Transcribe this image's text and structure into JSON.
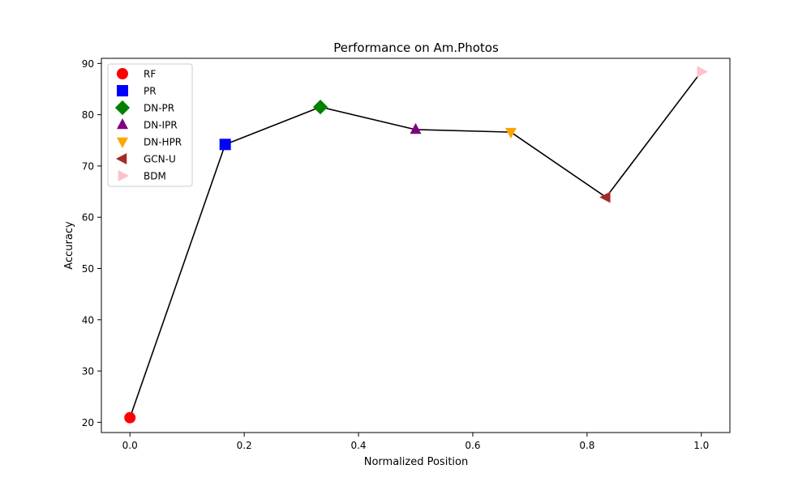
{
  "chart_data": {
    "type": "scatter",
    "title": "Performance on Am.Photos",
    "xlabel": "Normalized Position",
    "ylabel": "Accuracy",
    "xlim": [
      -0.05,
      1.05
    ],
    "ylim": [
      18,
      91
    ],
    "xticks": [
      0.0,
      0.2,
      0.4,
      0.6,
      0.8,
      1.0
    ],
    "xtick_labels": [
      "0.0",
      "0.2",
      "0.4",
      "0.6",
      "0.8",
      "1.0"
    ],
    "yticks": [
      20,
      30,
      40,
      50,
      60,
      70,
      80,
      90
    ],
    "ytick_labels": [
      "20",
      "30",
      "40",
      "50",
      "60",
      "70",
      "80",
      "90"
    ],
    "grid": false,
    "legend_position": "top-left",
    "connecting_line": {
      "color": "#000000"
    },
    "series": [
      {
        "name": "RF",
        "x": 0.0,
        "y": 20.9,
        "marker": "circle",
        "color": "#ff0000"
      },
      {
        "name": "PR",
        "x": 0.1667,
        "y": 74.2,
        "marker": "square",
        "color": "#0000ff"
      },
      {
        "name": "DN-PR",
        "x": 0.3333,
        "y": 81.5,
        "marker": "diamond",
        "color": "#008000"
      },
      {
        "name": "DN-IPR",
        "x": 0.5,
        "y": 77.1,
        "marker": "triangle-up",
        "color": "#800080"
      },
      {
        "name": "DN-HPR",
        "x": 0.6667,
        "y": 76.6,
        "marker": "triangle-down",
        "color": "#ffa500"
      },
      {
        "name": "GCN-U",
        "x": 0.8333,
        "y": 63.9,
        "marker": "triangle-left",
        "color": "#a52a2a"
      },
      {
        "name": "BDM",
        "x": 1.0,
        "y": 88.4,
        "marker": "triangle-right",
        "color": "#ffc0cb"
      }
    ]
  }
}
